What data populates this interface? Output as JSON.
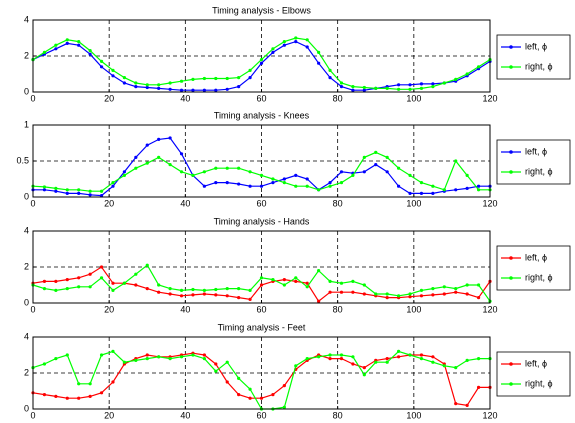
{
  "chart_data": [
    {
      "type": "line",
      "title": "Timing analysis - Elbows",
      "x": [
        0,
        3,
        6,
        9,
        12,
        15,
        18,
        21,
        24,
        27,
        30,
        33,
        36,
        39,
        42,
        45,
        48,
        51,
        54,
        57,
        60,
        63,
        66,
        69,
        72,
        75,
        78,
        81,
        84,
        87,
        90,
        93,
        96,
        99,
        102,
        105,
        108,
        111,
        114,
        117,
        120
      ],
      "series": [
        {
          "name": "left, ϕ",
          "color": "#0000ff",
          "values": [
            1.8,
            2.1,
            2.4,
            2.7,
            2.6,
            2.1,
            1.4,
            0.9,
            0.5,
            0.3,
            0.25,
            0.2,
            0.15,
            0.1,
            0.1,
            0.1,
            0.1,
            0.15,
            0.3,
            0.8,
            1.6,
            2.2,
            2.6,
            2.8,
            2.5,
            1.6,
            0.8,
            0.3,
            0.1,
            0.1,
            0.2,
            0.3,
            0.4,
            0.4,
            0.45,
            0.45,
            0.5,
            0.6,
            0.9,
            1.3,
            1.7
          ]
        },
        {
          "name": "right, ϕ",
          "color": "#00ff00",
          "values": [
            1.8,
            2.2,
            2.6,
            2.9,
            2.8,
            2.3,
            1.7,
            1.2,
            0.8,
            0.5,
            0.4,
            0.4,
            0.5,
            0.6,
            0.7,
            0.75,
            0.75,
            0.75,
            0.8,
            1.2,
            1.8,
            2.4,
            2.8,
            3.0,
            2.9,
            2.2,
            1.2,
            0.5,
            0.3,
            0.25,
            0.2,
            0.2,
            0.15,
            0.15,
            0.2,
            0.3,
            0.5,
            0.7,
            1.0,
            1.4,
            1.8
          ]
        }
      ],
      "xlim": [
        0,
        120
      ],
      "ylim": [
        0,
        4
      ],
      "xticks": [
        0,
        20,
        40,
        60,
        80,
        100,
        120
      ],
      "yticks": [
        0,
        2,
        4
      ],
      "grid": true,
      "legend": "right"
    },
    {
      "type": "line",
      "title": "Timing analysis - Knees",
      "x": [
        0,
        3,
        6,
        9,
        12,
        15,
        18,
        21,
        24,
        27,
        30,
        33,
        36,
        39,
        42,
        45,
        48,
        51,
        54,
        57,
        60,
        63,
        66,
        69,
        72,
        75,
        78,
        81,
        84,
        87,
        90,
        93,
        96,
        99,
        102,
        105,
        108,
        111,
        114,
        117,
        120
      ],
      "series": [
        {
          "name": "left, ϕ",
          "color": "#0000ff",
          "values": [
            0.1,
            0.1,
            0.08,
            0.05,
            0.05,
            0.03,
            0.02,
            0.15,
            0.35,
            0.55,
            0.72,
            0.8,
            0.82,
            0.6,
            0.3,
            0.15,
            0.2,
            0.2,
            0.18,
            0.15,
            0.15,
            0.2,
            0.25,
            0.3,
            0.25,
            0.1,
            0.2,
            0.35,
            0.33,
            0.35,
            0.45,
            0.35,
            0.15,
            0.05,
            0.05,
            0.05,
            0.08,
            0.1,
            0.12,
            0.15,
            0.15
          ]
        },
        {
          "name": "right, ϕ",
          "color": "#00ff00",
          "values": [
            0.15,
            0.14,
            0.12,
            0.1,
            0.1,
            0.08,
            0.08,
            0.2,
            0.3,
            0.4,
            0.47,
            0.55,
            0.45,
            0.35,
            0.3,
            0.35,
            0.4,
            0.4,
            0.4,
            0.35,
            0.3,
            0.25,
            0.2,
            0.15,
            0.15,
            0.1,
            0.15,
            0.2,
            0.3,
            0.55,
            0.62,
            0.55,
            0.4,
            0.3,
            0.2,
            0.15,
            0.1,
            0.5,
            0.3,
            0.1,
            0.1
          ]
        }
      ],
      "xlim": [
        0,
        120
      ],
      "ylim": [
        0,
        1
      ],
      "xticks": [
        0,
        20,
        40,
        60,
        80,
        100,
        120
      ],
      "yticks": [
        0,
        0.5,
        1
      ],
      "grid": true,
      "legend": "right"
    },
    {
      "type": "line",
      "title": "Timing analysis - Hands",
      "x": [
        0,
        3,
        6,
        9,
        12,
        15,
        18,
        21,
        24,
        27,
        30,
        33,
        36,
        39,
        42,
        45,
        48,
        51,
        54,
        57,
        60,
        63,
        66,
        69,
        72,
        75,
        78,
        81,
        84,
        87,
        90,
        93,
        96,
        99,
        102,
        105,
        108,
        111,
        114,
        117,
        120
      ],
      "series": [
        {
          "name": "left, ϕ",
          "color": "#ff0000",
          "values": [
            1.1,
            1.2,
            1.2,
            1.3,
            1.4,
            1.6,
            2.0,
            1.1,
            1.1,
            1.0,
            0.8,
            0.6,
            0.5,
            0.4,
            0.45,
            0.5,
            0.45,
            0.4,
            0.3,
            0.2,
            1.0,
            1.2,
            1.3,
            1.2,
            1.1,
            0.1,
            0.6,
            0.6,
            0.6,
            0.5,
            0.4,
            0.3,
            0.3,
            0.35,
            0.4,
            0.45,
            0.5,
            0.6,
            0.5,
            0.3,
            1.2
          ]
        },
        {
          "name": "right, ϕ",
          "color": "#00ff00",
          "values": [
            1.0,
            0.8,
            0.7,
            0.8,
            0.9,
            0.9,
            1.4,
            0.7,
            1.1,
            1.6,
            2.1,
            1.0,
            0.8,
            0.7,
            0.75,
            0.7,
            0.75,
            0.8,
            0.8,
            0.7,
            1.4,
            1.3,
            1.0,
            1.4,
            0.9,
            1.8,
            1.2,
            1.1,
            1.2,
            1.0,
            0.5,
            0.5,
            0.4,
            0.5,
            0.7,
            0.8,
            0.9,
            0.8,
            1.0,
            1.0,
            0.1
          ]
        }
      ],
      "xlim": [
        0,
        120
      ],
      "ylim": [
        0,
        4
      ],
      "xticks": [
        0,
        20,
        40,
        60,
        80,
        100,
        120
      ],
      "yticks": [
        0,
        2,
        4
      ],
      "grid": true,
      "legend": "right"
    },
    {
      "type": "line",
      "title": "Timing analysis - Feet",
      "x": [
        0,
        3,
        6,
        9,
        12,
        15,
        18,
        21,
        24,
        27,
        30,
        33,
        36,
        39,
        42,
        45,
        48,
        51,
        54,
        57,
        60,
        63,
        66,
        69,
        72,
        75,
        78,
        81,
        84,
        87,
        90,
        93,
        96,
        99,
        102,
        105,
        108,
        111,
        114,
        117,
        120
      ],
      "series": [
        {
          "name": "left, ϕ",
          "color": "#ff0000",
          "values": [
            0.9,
            0.8,
            0.7,
            0.6,
            0.6,
            0.7,
            0.9,
            1.5,
            2.5,
            2.8,
            3.0,
            2.9,
            2.9,
            3.0,
            3.1,
            3.0,
            2.5,
            1.5,
            0.8,
            0.6,
            0.6,
            0.8,
            1.3,
            2.2,
            2.7,
            3.0,
            2.8,
            2.8,
            2.5,
            2.3,
            2.7,
            2.8,
            2.9,
            3.0,
            3.0,
            2.9,
            2.5,
            0.3,
            0.2,
            1.2,
            1.2
          ]
        },
        {
          "name": "right, ϕ",
          "color": "#00ff00",
          "values": [
            2.3,
            2.5,
            2.8,
            3.0,
            1.4,
            1.4,
            3.0,
            3.2,
            2.6,
            2.7,
            2.8,
            2.9,
            2.8,
            2.9,
            3.0,
            2.8,
            2.1,
            2.6,
            1.7,
            1.1,
            0.0,
            0.0,
            0.1,
            2.4,
            2.8,
            2.9,
            3.0,
            3.0,
            2.9,
            1.9,
            2.6,
            2.6,
            3.2,
            3.0,
            2.8,
            2.6,
            2.4,
            2.3,
            2.7,
            2.8,
            2.8
          ]
        }
      ],
      "xlim": [
        0,
        120
      ],
      "ylim": [
        0,
        4
      ],
      "xticks": [
        0,
        20,
        40,
        60,
        80,
        100,
        120
      ],
      "yticks": [
        0,
        2,
        4
      ],
      "grid": true,
      "legend": "right"
    }
  ]
}
